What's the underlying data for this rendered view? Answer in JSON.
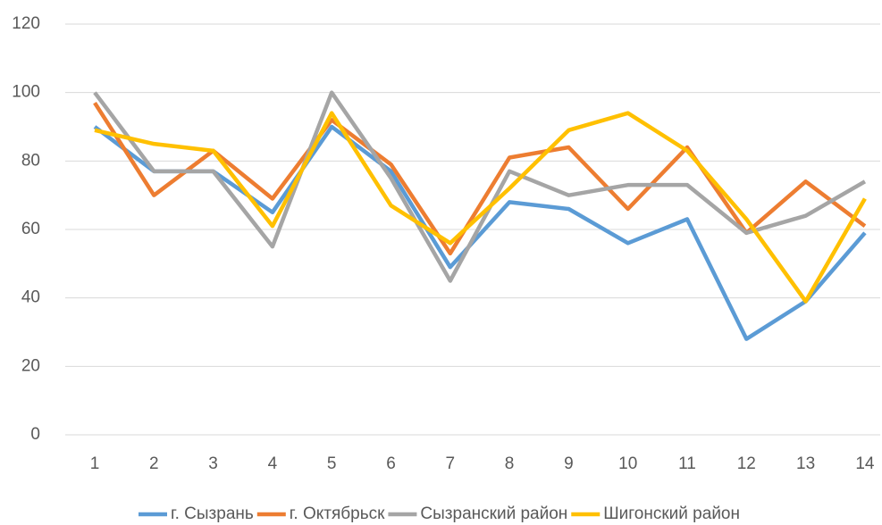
{
  "chart_data": {
    "type": "line",
    "categories": [
      1,
      2,
      3,
      4,
      5,
      6,
      7,
      8,
      9,
      10,
      11,
      12,
      13,
      14
    ],
    "series": [
      {
        "name": "г. Сызрань",
        "color": "#5b9bd5",
        "values": [
          90,
          77,
          77,
          65,
          90,
          77,
          49,
          68,
          66,
          56,
          63,
          28,
          39,
          59
        ]
      },
      {
        "name": "г. Октябрьск",
        "color": "#ed7d31",
        "values": [
          97,
          70,
          83,
          69,
          92,
          79,
          53,
          81,
          84,
          66,
          84,
          59,
          74,
          61
        ]
      },
      {
        "name": "Сызранский район",
        "color": "#a5a5a5",
        "values": [
          100,
          77,
          77,
          55,
          100,
          75,
          45,
          77,
          70,
          73,
          73,
          59,
          64,
          74
        ]
      },
      {
        "name": "Шигонский район",
        "color": "#ffc000",
        "values": [
          89,
          85,
          83,
          61,
          94,
          67,
          56,
          72,
          89,
          94,
          83,
          63,
          39,
          69
        ]
      }
    ],
    "ylim": [
      0,
      120
    ],
    "yticks": [
      0,
      20,
      40,
      60,
      80,
      100,
      120
    ],
    "grid": true,
    "legend": "bottom"
  }
}
